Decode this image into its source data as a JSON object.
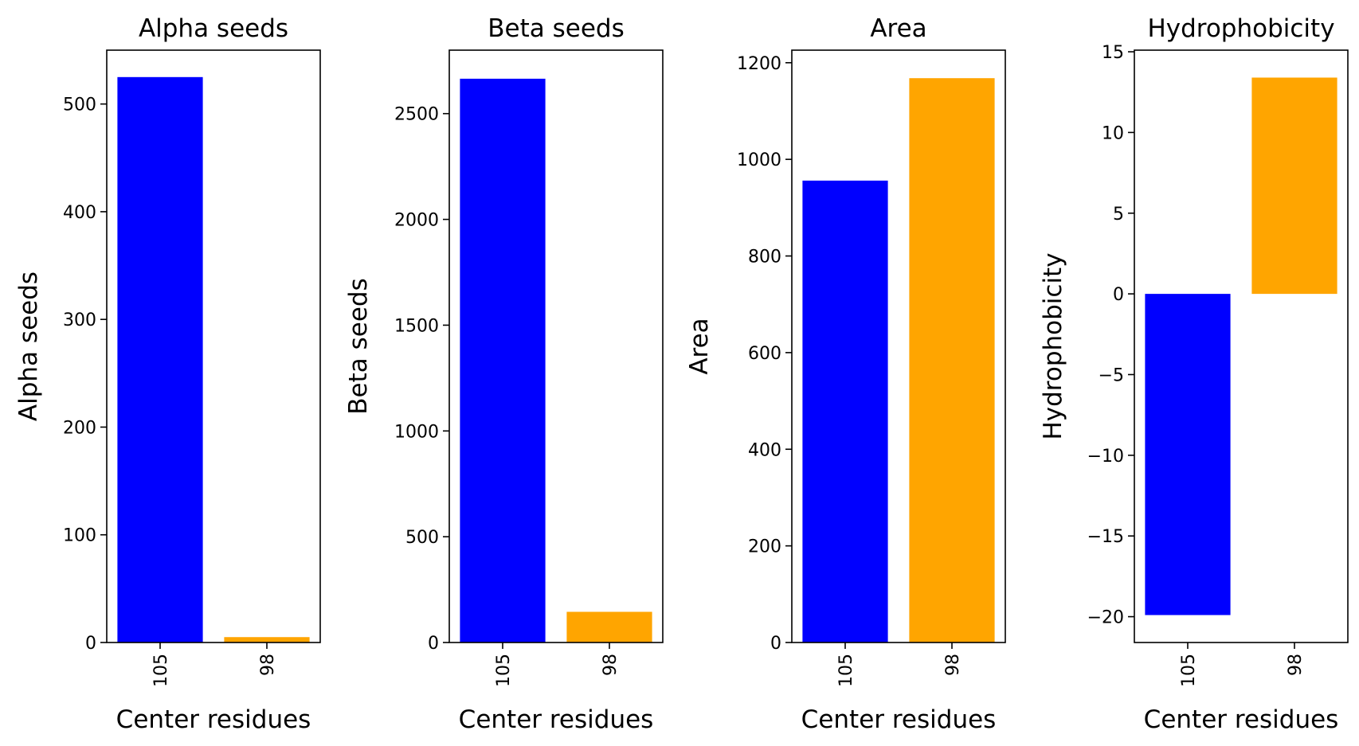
{
  "chart_data": [
    {
      "type": "bar",
      "title": "Alpha seeds",
      "xlabel": "Center residues",
      "ylabel": "Alpha seeds",
      "categories": [
        "105",
        "98"
      ],
      "values": [
        525,
        5
      ],
      "colors": [
        "#0000ff",
        "#ffa500"
      ],
      "ylim": [
        0,
        550
      ],
      "yticks": [
        0,
        100,
        200,
        300,
        400,
        500
      ],
      "ytick_labels": [
        "0",
        "100",
        "200",
        "300",
        "400",
        "500"
      ],
      "grid": false
    },
    {
      "type": "bar",
      "title": "Beta seeds",
      "xlabel": "Center residues",
      "ylabel": "Beta seeds",
      "categories": [
        "105",
        "98"
      ],
      "values": [
        2665,
        145
      ],
      "colors": [
        "#0000ff",
        "#ffa500"
      ],
      "ylim": [
        0,
        2800
      ],
      "yticks": [
        0,
        500,
        1000,
        1500,
        2000,
        2500
      ],
      "ytick_labels": [
        "0",
        "500",
        "1000",
        "1500",
        "2000",
        "2500"
      ],
      "grid": false
    },
    {
      "type": "bar",
      "title": "Area",
      "xlabel": "Center residues",
      "ylabel": "Area",
      "categories": [
        "105",
        "98"
      ],
      "values": [
        956,
        1168
      ],
      "colors": [
        "#0000ff",
        "#ffa500"
      ],
      "ylim": [
        0,
        1226
      ],
      "yticks": [
        0,
        200,
        400,
        600,
        800,
        1000,
        1200
      ],
      "ytick_labels": [
        "0",
        "200",
        "400",
        "600",
        "800",
        "1000",
        "1200"
      ],
      "grid": false
    },
    {
      "type": "bar",
      "title": "Hydrophobicity",
      "xlabel": "Center residues",
      "ylabel": "Hydrophobicity",
      "categories": [
        "105",
        "98"
      ],
      "values": [
        -19.9,
        13.4
      ],
      "colors": [
        "#0000ff",
        "#ffa500"
      ],
      "ylim": [
        -21.6,
        15.1
      ],
      "yticks": [
        -20,
        -15,
        -10,
        -5,
        0,
        5,
        10,
        15
      ],
      "ytick_labels": [
        "−20",
        "−15",
        "−10",
        "−5",
        "0",
        "5",
        "10",
        "15"
      ],
      "grid": false
    }
  ]
}
